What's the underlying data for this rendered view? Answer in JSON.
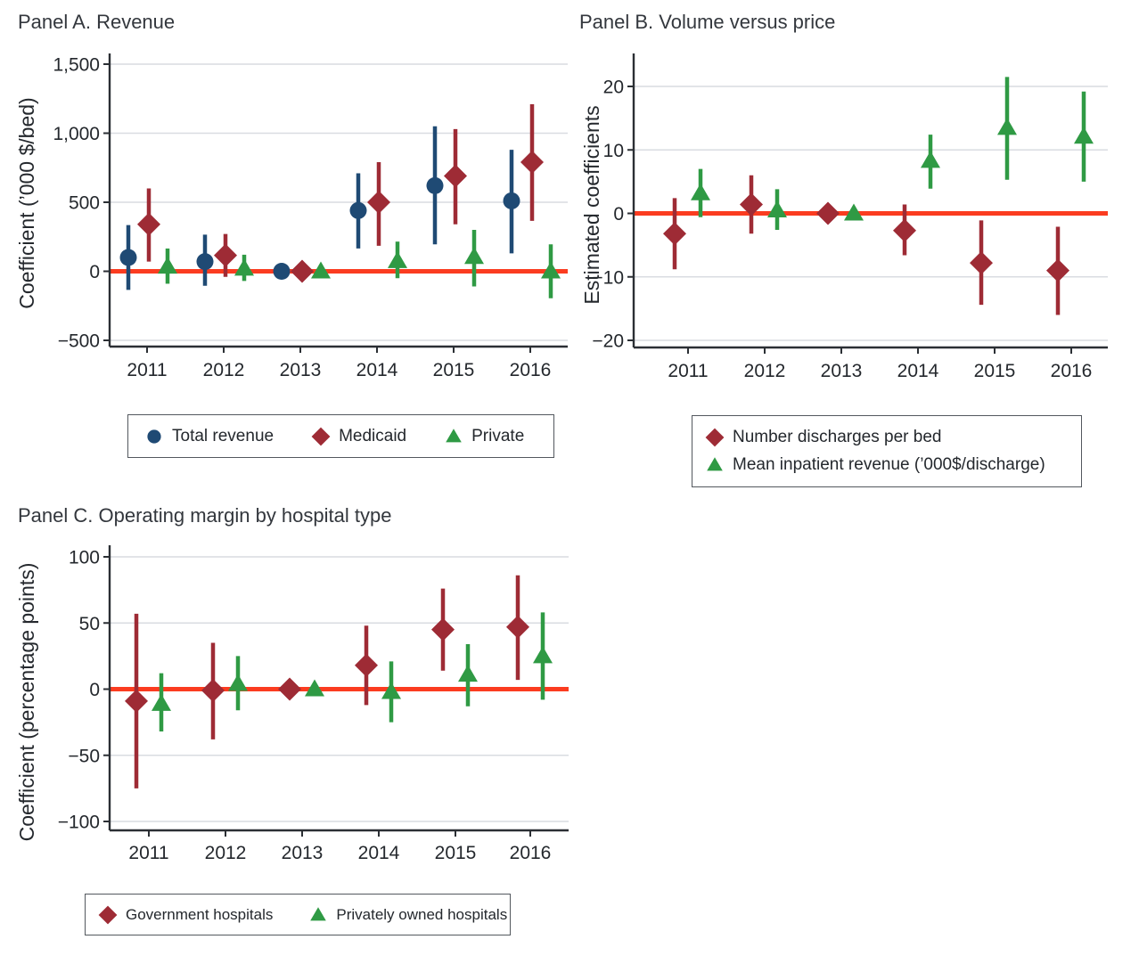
{
  "colors": {
    "navy": "#1f4a74",
    "maroon": "#9e2b35",
    "green": "#2f9a44",
    "zero_line": "#fb3c20",
    "grid": "#d9dce1",
    "axis": "#2b2f34",
    "text": "#24282d",
    "legend_border": "#53585e"
  },
  "chart_data": [
    {
      "type": "scatter",
      "panel": "A",
      "title": "Panel A. Revenue",
      "ylabel": "Coefficient (’000 $/bed)",
      "ylim": [
        -500,
        1500
      ],
      "grid": true,
      "legend_position": "bottom",
      "zero_line": 0,
      "years": [
        2011,
        2012,
        2013,
        2014,
        2015,
        2016
      ],
      "yticks": [
        {
          "v": 1500,
          "label": "1,500"
        },
        {
          "v": 1000,
          "label": "1,000"
        },
        {
          "v": 500,
          "label": "500"
        },
        {
          "v": 0,
          "label": "0"
        },
        {
          "v": -500,
          "label": "−500"
        }
      ],
      "xticks": [
        {
          "v": 2011,
          "label": "2011"
        },
        {
          "v": 2012,
          "label": "2012"
        },
        {
          "v": 2013,
          "label": "2013"
        },
        {
          "v": 2014,
          "label": "2014"
        },
        {
          "v": 2015,
          "label": "2015"
        },
        {
          "v": 2016,
          "label": "2016"
        }
      ],
      "series": [
        {
          "name": "Total revenue",
          "shape": "circle",
          "color": "#1f4a74",
          "values": [
            100,
            70,
            0,
            440,
            620,
            510
          ],
          "ci_low": [
            -135,
            -105,
            0,
            165,
            195,
            130
          ],
          "ci_high": [
            335,
            265,
            0,
            710,
            1050,
            880
          ]
        },
        {
          "name": "Medicaid",
          "shape": "diamond",
          "color": "#9e2b35",
          "values": [
            340,
            115,
            0,
            500,
            690,
            790
          ],
          "ci_low": [
            70,
            -40,
            0,
            185,
            340,
            365
          ],
          "ci_high": [
            600,
            270,
            0,
            790,
            1030,
            1210
          ]
        },
        {
          "name": "Private",
          "shape": "triangle",
          "color": "#2f9a44",
          "values": [
            35,
            20,
            0,
            75,
            105,
            0
          ],
          "ci_low": [
            -90,
            -70,
            0,
            -50,
            -110,
            -195
          ],
          "ci_high": [
            165,
            120,
            0,
            215,
            300,
            195
          ]
        }
      ]
    },
    {
      "type": "scatter",
      "panel": "B",
      "title": "Panel B. Volume versus price",
      "ylabel": "Estimated coefficients",
      "ylim": [
        -20,
        20
      ],
      "grid": true,
      "legend_position": "bottom",
      "zero_line": 0,
      "years": [
        2011,
        2012,
        2013,
        2014,
        2015,
        2016
      ],
      "yticks": [
        {
          "v": 20,
          "label": "20"
        },
        {
          "v": 10,
          "label": "10"
        },
        {
          "v": 0,
          "label": "0"
        },
        {
          "v": -10,
          "label": "−10"
        },
        {
          "v": -20,
          "label": "−20"
        }
      ],
      "xticks": [
        {
          "v": 2011,
          "label": "2011"
        },
        {
          "v": 2012,
          "label": "2012"
        },
        {
          "v": 2013,
          "label": "2013"
        },
        {
          "v": 2014,
          "label": "2014"
        },
        {
          "v": 2015,
          "label": "2015"
        },
        {
          "v": 2016,
          "label": "2016"
        }
      ],
      "series": [
        {
          "name": "Number discharges per bed",
          "shape": "diamond",
          "color": "#9e2b35",
          "values": [
            -3.2,
            1.4,
            0,
            -2.7,
            -7.8,
            -9.0
          ],
          "ci_low": [
            -8.8,
            -3.2,
            0,
            -6.6,
            -14.4,
            -16.0
          ],
          "ci_high": [
            2.4,
            6.0,
            0,
            1.4,
            -1.1,
            -2.1
          ]
        },
        {
          "name": "Mean inpatient revenue (’000$/discharge)",
          "shape": "triangle",
          "color": "#2f9a44",
          "values": [
            3.2,
            0.5,
            0,
            8.3,
            13.5,
            12.1
          ],
          "ci_low": [
            -0.6,
            -2.6,
            0,
            3.9,
            5.3,
            5.0
          ],
          "ci_high": [
            7.0,
            3.8,
            0,
            12.4,
            21.5,
            19.2
          ]
        }
      ]
    },
    {
      "type": "scatter",
      "panel": "C",
      "title": "Panel C. Operating margin by hospital type",
      "ylabel": "Coefficient (percentage points)",
      "ylim": [
        -100,
        100
      ],
      "grid": true,
      "legend_position": "bottom",
      "zero_line": 0,
      "years": [
        2011,
        2012,
        2013,
        2014,
        2015,
        2016
      ],
      "yticks": [
        {
          "v": 100,
          "label": "100"
        },
        {
          "v": 50,
          "label": "50"
        },
        {
          "v": 0,
          "label": "0"
        },
        {
          "v": -50,
          "label": "−50"
        },
        {
          "v": -100,
          "label": "−100"
        }
      ],
      "xticks": [
        {
          "v": 2011,
          "label": "2011"
        },
        {
          "v": 2012,
          "label": "2012"
        },
        {
          "v": 2013,
          "label": "2013"
        },
        {
          "v": 2014,
          "label": "2014"
        },
        {
          "v": 2015,
          "label": "2015"
        },
        {
          "v": 2016,
          "label": "2016"
        }
      ],
      "series": [
        {
          "name": "Government hospitals",
          "shape": "diamond",
          "color": "#9e2b35",
          "values": [
            -9,
            -1,
            0,
            18,
            45,
            47
          ],
          "ci_low": [
            -75,
            -38,
            0,
            -12,
            14,
            7
          ],
          "ci_high": [
            57,
            35,
            0,
            48,
            76,
            86
          ]
        },
        {
          "name": "Privately owned hospitals",
          "shape": "triangle",
          "color": "#2f9a44",
          "values": [
            -11,
            4,
            0,
            -2,
            11,
            25
          ],
          "ci_low": [
            -32,
            -16,
            0,
            -25,
            -13,
            -8
          ],
          "ci_high": [
            12,
            25,
            0,
            21,
            34,
            58
          ]
        }
      ]
    }
  ]
}
